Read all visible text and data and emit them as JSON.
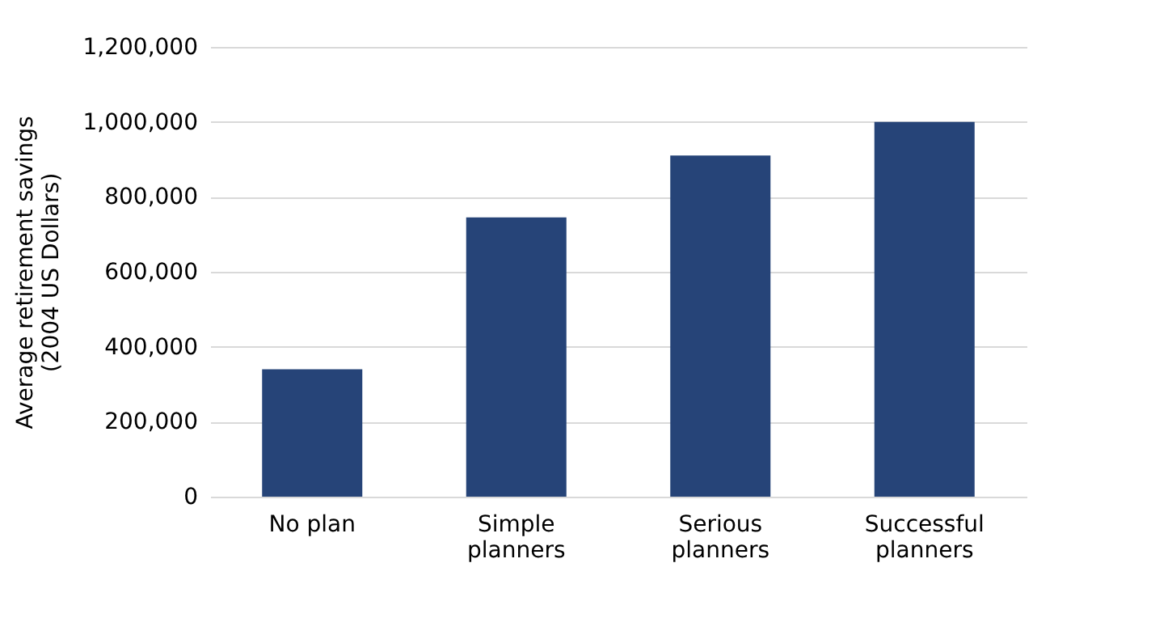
{
  "chart_data": {
    "type": "bar",
    "ylabel": "Average retirement savings (2004 US Dollars)",
    "categories": [
      "No plan",
      "Simple planners",
      "Serious planners",
      "Successful planners"
    ],
    "values": [
      340000,
      745000,
      910000,
      1000000
    ],
    "color": "#264478",
    "ylim": [
      0,
      1200000
    ],
    "yticks": [
      0,
      {
        "value": 200000,
        "label": "200,000"
      },
      {
        "value": 400000,
        "label": "400,000"
      },
      {
        "value": 600000,
        "label": "600,000"
      },
      {
        "value": 800000,
        "label": "800,000"
      },
      {
        "value": 1000000,
        "label": "1,000,000"
      },
      {
        "value": 1200000,
        "label": "1,200,000"
      }
    ],
    "grid": "y"
  }
}
